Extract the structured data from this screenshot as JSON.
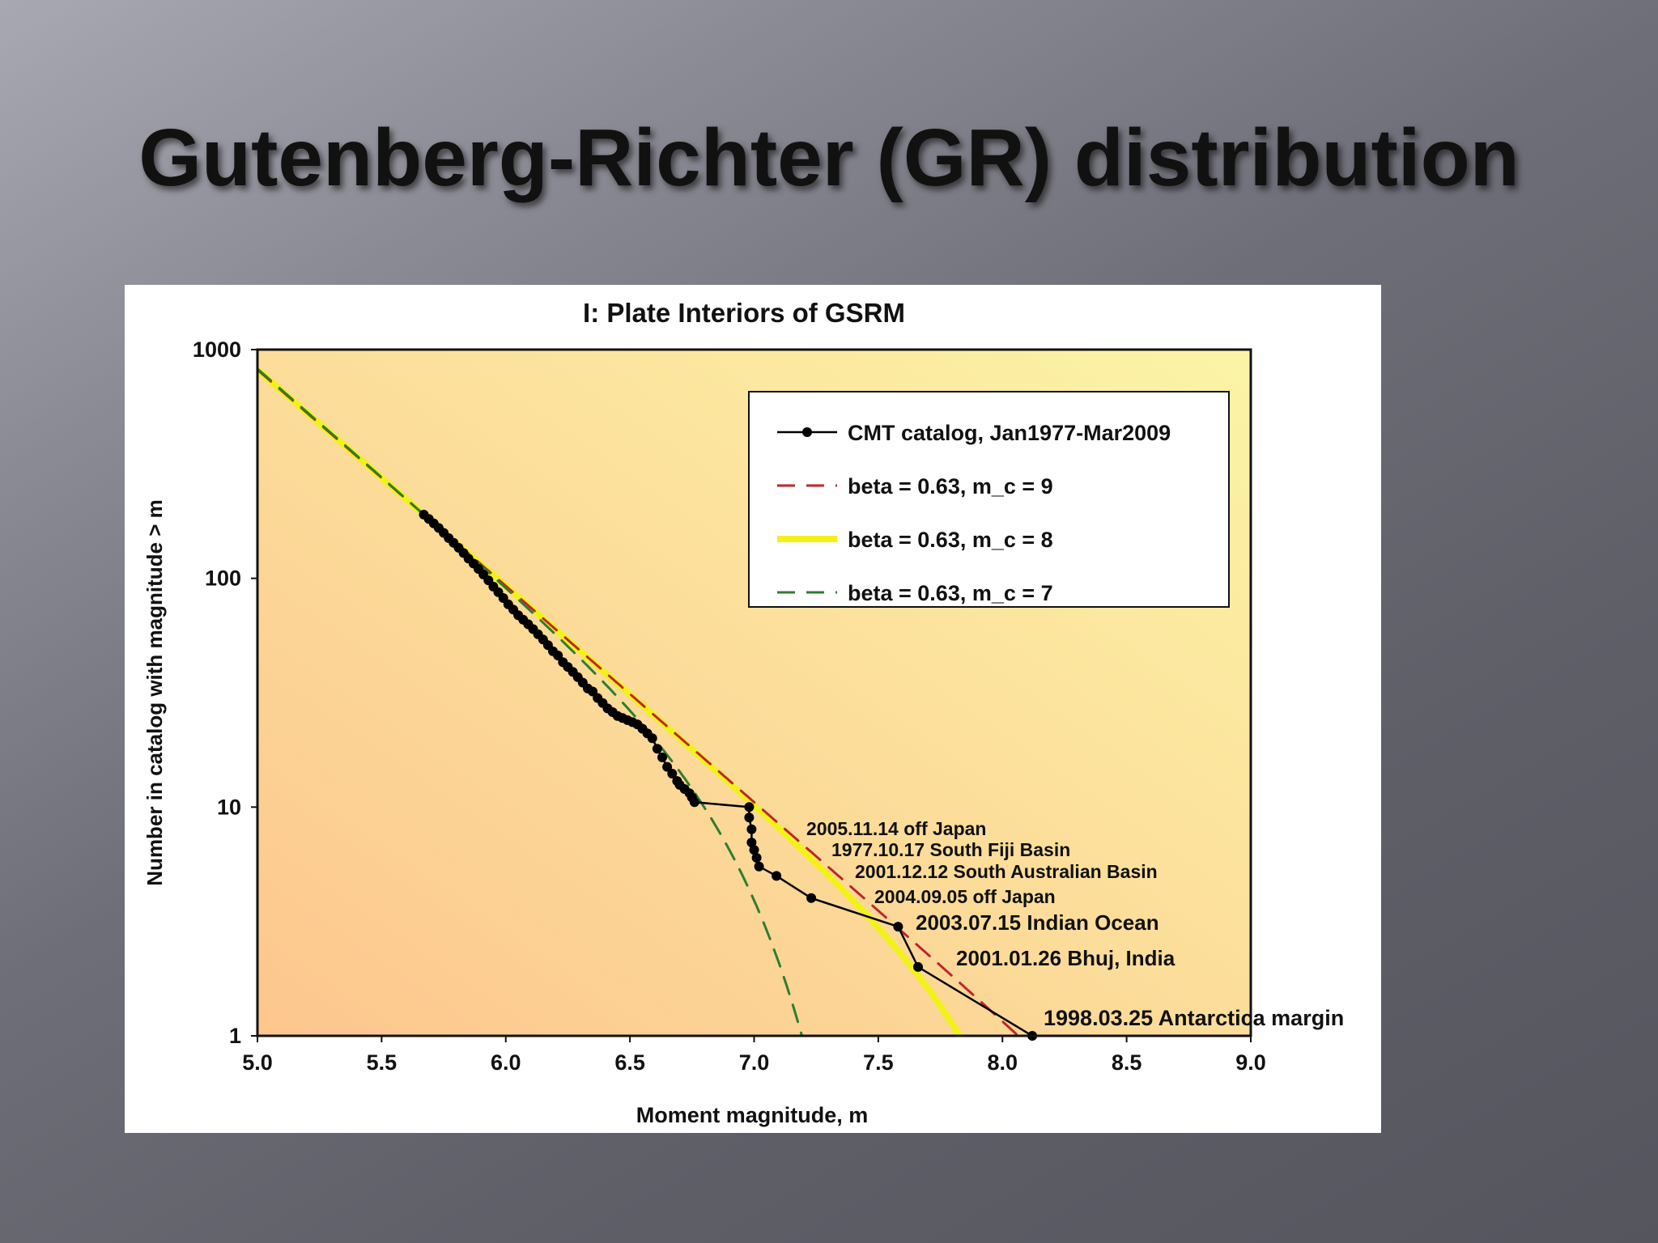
{
  "slide": {
    "title": "Gutenberg-Richter (GR) distribution"
  },
  "colors": {
    "cmt": "#000000",
    "mc9": "#c0262a",
    "mc8": "#f2f21a",
    "mc7": "#2e7d2e",
    "plot_bg_top": "#fbf09e",
    "plot_bg_bottom": "#fdc58e"
  },
  "chart_data": {
    "type": "line",
    "title": "I: Plate Interiors of GSRM",
    "xlabel": "Moment magnitude, m",
    "ylabel": "Number in catalog with magnitude  >  m",
    "xlim": [
      5.0,
      9.0
    ],
    "ylim": [
      1,
      1000
    ],
    "y_scale": "log",
    "x_ticks": [
      "5.0",
      "5.5",
      "6.0",
      "6.5",
      "7.0",
      "7.5",
      "8.0",
      "8.5",
      "9.0"
    ],
    "y_ticks": [
      "1",
      "10",
      "100",
      "1000"
    ],
    "legend_position": "top-right",
    "series": [
      {
        "name": "CMT catalog, Jan1977-Mar2009",
        "style": "solid-markers",
        "x": [
          5.67,
          5.69,
          5.71,
          5.73,
          5.75,
          5.77,
          5.79,
          5.81,
          5.83,
          5.85,
          5.87,
          5.89,
          5.91,
          5.93,
          5.95,
          5.97,
          5.99,
          6.01,
          6.03,
          6.05,
          6.07,
          6.09,
          6.11,
          6.13,
          6.15,
          6.17,
          6.19,
          6.21,
          6.23,
          6.25,
          6.27,
          6.29,
          6.31,
          6.33,
          6.35,
          6.37,
          6.39,
          6.41,
          6.43,
          6.45,
          6.47,
          6.49,
          6.51,
          6.53,
          6.55,
          6.57,
          6.59,
          6.61,
          6.63,
          6.65,
          6.67,
          6.69,
          6.7,
          6.72,
          6.74,
          6.75,
          6.76,
          6.98,
          6.98,
          6.99,
          6.99,
          7.0,
          7.01,
          7.02,
          7.09,
          7.23,
          7.58,
          7.66,
          8.12
        ],
        "y": [
          190,
          182,
          174,
          166,
          158,
          150,
          143,
          136,
          129,
          122,
          116,
          110,
          104,
          98,
          92,
          87,
          82,
          77,
          73,
          69,
          66,
          63,
          60,
          57,
          54,
          51,
          48,
          46,
          43,
          41,
          39,
          37,
          35,
          33,
          32,
          30,
          28.5,
          27,
          26,
          25,
          24.5,
          24,
          23.5,
          23,
          22,
          21,
          20,
          18,
          16.5,
          15,
          14,
          13,
          12.5,
          12,
          11.5,
          11,
          10.5,
          10,
          9,
          8,
          7,
          6.5,
          6,
          5.5,
          5,
          4,
          3,
          2,
          1
        ]
      },
      {
        "name": "beta = 0.63, m_c = 9",
        "style": "dashed",
        "beta": 0.63,
        "m_c": 9
      },
      {
        "name": "beta = 0.63, m_c = 8",
        "style": "thick-solid",
        "beta": 0.63,
        "m_c": 8
      },
      {
        "name": "beta = 0.63, m_c = 7",
        "style": "dashed",
        "beta": 0.63,
        "m_c": 7
      }
    ],
    "annotations": [
      {
        "text": "2005.11.14 off Japan",
        "x": 7.0,
        "y": 10
      },
      {
        "text": "1977.10.17 South Fiji Basin",
        "x": 7.01,
        "y": 8
      },
      {
        "text": "2001.12.12 South Australian Basin",
        "x": 7.09,
        "y": 5
      },
      {
        "text": "2004.09.05 off Japan",
        "x": 7.23,
        "y": 4
      },
      {
        "text": "2003.07.15 Indian Ocean",
        "x": 7.58,
        "y": 3
      },
      {
        "text": "2001.01.26 Bhuj, India",
        "x": 7.66,
        "y": 2
      },
      {
        "text": "1998.03.25 Antarctica margin",
        "x": 8.12,
        "y": 1
      }
    ]
  }
}
